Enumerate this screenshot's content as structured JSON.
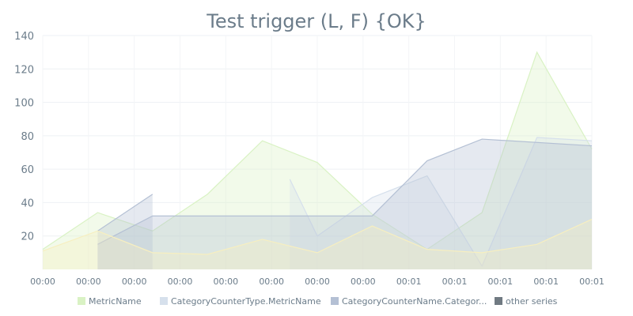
{
  "chart_data": {
    "type": "area",
    "title": "Test trigger (L, F) {OK}",
    "xlabel": "",
    "ylabel": "",
    "ylim": [
      0,
      140
    ],
    "yticks": [
      20,
      40,
      60,
      80,
      100,
      120,
      140
    ],
    "x": [
      0,
      1,
      2,
      3,
      4,
      5,
      6,
      7,
      8,
      9,
      10,
      11,
      12
    ],
    "x_tick_labels": [
      "00:00",
      "00:00",
      "00:00",
      "00:00",
      "00:00",
      "00:00",
      "00:00",
      "00:00",
      "00:01",
      "00:01",
      "00:01",
      "00:01",
      "00:01"
    ],
    "grid": true,
    "legend_position": "bottom",
    "series": [
      {
        "name": "MetricName",
        "color": "#d9f2c4",
        "points": [
          [
            0,
            12
          ],
          [
            1.2,
            34
          ],
          [
            2.4,
            23
          ],
          [
            3.6,
            45
          ],
          [
            4.8,
            77
          ],
          [
            6,
            64
          ],
          [
            7.2,
            33
          ],
          [
            8.4,
            12
          ],
          [
            9.6,
            34
          ],
          [
            10.8,
            130
          ],
          [
            12,
            72
          ]
        ]
      },
      {
        "name": "CategoryCounterType.MetricName",
        "color": "#d6e0ec",
        "points": [
          [
            5.4,
            54
          ],
          [
            6,
            20
          ],
          [
            7.2,
            43
          ],
          [
            8.4,
            56
          ],
          [
            9.6,
            2
          ],
          [
            10.8,
            79
          ],
          [
            12,
            77
          ]
        ]
      },
      {
        "name": "CategoryCounterName.Categor...",
        "color": "#b4c0d4",
        "points": [
          [
            1.2,
            15
          ],
          [
            2.4,
            32
          ],
          [
            7.2,
            32
          ],
          [
            8.4,
            65
          ],
          [
            9.6,
            78
          ],
          [
            12,
            74
          ]
        ]
      },
      {
        "name": "CategoryCounterName.Categor...",
        "color": "#b4c0d4",
        "points": [
          [
            1.2,
            23
          ],
          [
            2.4,
            45
          ]
        ]
      },
      {
        "name": "other series",
        "color": "#f7efc0",
        "points": [
          [
            0,
            11
          ],
          [
            1.2,
            23
          ],
          [
            2.4,
            10
          ],
          [
            3.6,
            9
          ],
          [
            4.8,
            18
          ],
          [
            6,
            10
          ],
          [
            7.2,
            26
          ],
          [
            8.4,
            12
          ],
          [
            9.6,
            10
          ],
          [
            10.8,
            15
          ],
          [
            12,
            30
          ]
        ]
      }
    ],
    "legend": [
      {
        "name": "MetricName",
        "color": "#d9f2c4"
      },
      {
        "name": "CategoryCounterType.MetricName",
        "color": "#d6e0ec"
      },
      {
        "name": "CategoryCounterName.Categor...",
        "color": "#b4c0d4"
      },
      {
        "name": "other series",
        "color": "#707a82"
      }
    ]
  }
}
